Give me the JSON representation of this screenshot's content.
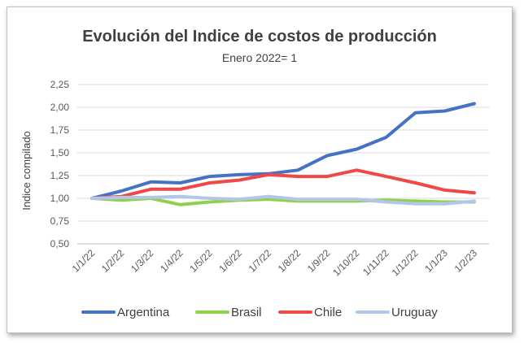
{
  "chart_data": {
    "type": "line",
    "title": "Evolución del Indice de costos de producción",
    "subtitle": "Enero 2022= 1",
    "ylabel": "Indice compilado",
    "xlabel": "",
    "ylim": [
      0.5,
      2.25
    ],
    "yticks": [
      "0,50",
      "0,75",
      "1,00",
      "1,25",
      "1,50",
      "1,75",
      "2,00",
      "2,25"
    ],
    "ytick_values": [
      0.5,
      0.75,
      1.0,
      1.25,
      1.5,
      1.75,
      2.0,
      2.25
    ],
    "categories": [
      "1/1/22",
      "1/2/22",
      "1/3/22",
      "1/4/22",
      "1/5/22",
      "1/6/22",
      "1/7/22",
      "1/8/22",
      "1/9/22",
      "1/10/22",
      "1/11/22",
      "1/12/22",
      "1/1/23",
      "1/2/23"
    ],
    "grid": true,
    "legend_position": "bottom",
    "series": [
      {
        "name": "Argentina",
        "color": "#4472c4",
        "values": [
          1.0,
          1.08,
          1.18,
          1.17,
          1.24,
          1.26,
          1.27,
          1.31,
          1.47,
          1.54,
          1.67,
          1.94,
          1.96,
          2.04
        ]
      },
      {
        "name": "Brasil",
        "color": "#8fd14f",
        "values": [
          1.0,
          0.98,
          1.0,
          0.93,
          0.96,
          0.98,
          0.99,
          0.97,
          0.97,
          0.97,
          0.98,
          0.97,
          0.96,
          0.96
        ]
      },
      {
        "name": "Chile",
        "color": "#f04747",
        "values": [
          1.0,
          1.02,
          1.1,
          1.1,
          1.17,
          1.2,
          1.26,
          1.24,
          1.24,
          1.31,
          1.24,
          1.17,
          1.09,
          1.06
        ]
      },
      {
        "name": "Uruguay",
        "color": "#b4c6e7",
        "values": [
          1.0,
          1.01,
          1.01,
          1.02,
          1.0,
          0.99,
          1.02,
          0.99,
          0.99,
          0.99,
          0.96,
          0.94,
          0.94,
          0.97
        ]
      }
    ]
  }
}
